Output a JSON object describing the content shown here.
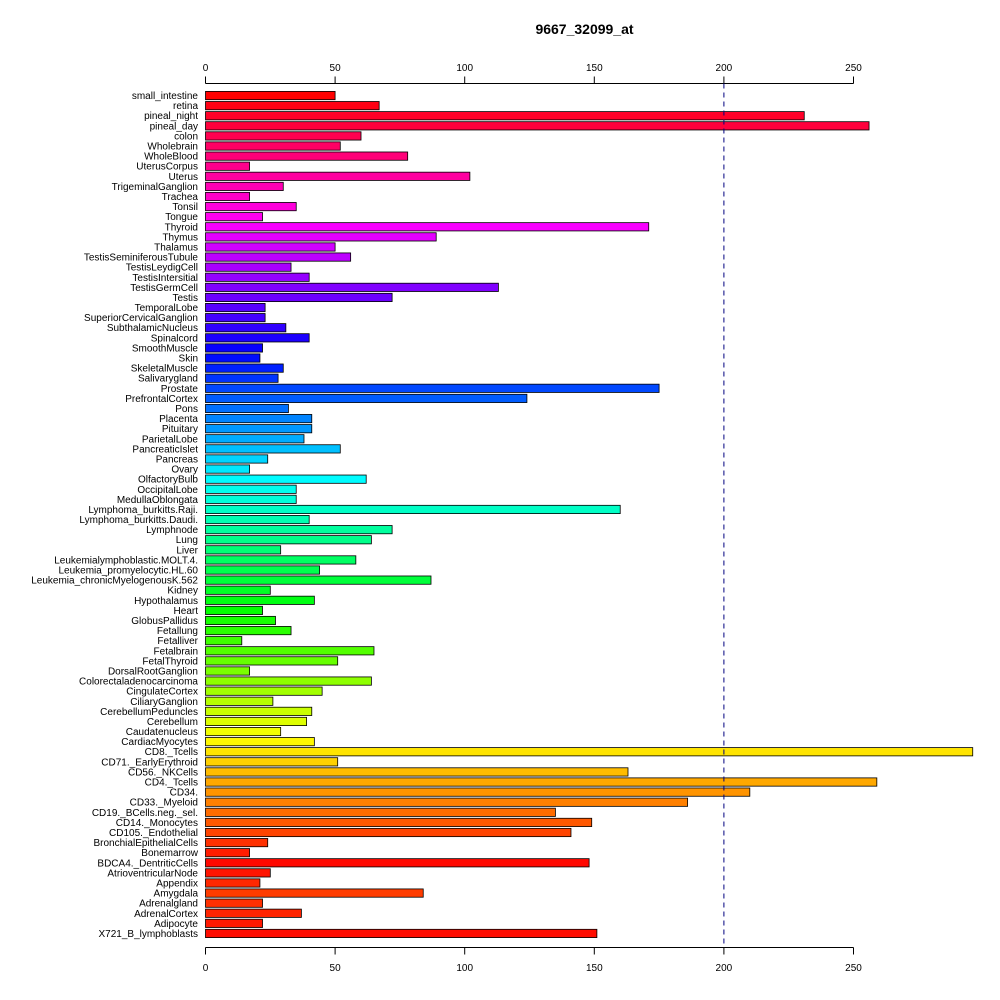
{
  "chart_data": {
    "type": "bar",
    "orientation": "horizontal",
    "title": "9667_32099_at",
    "xlabel": "",
    "ylabel": "",
    "xlim": [
      0,
      295
    ],
    "xticks": [
      0,
      50,
      100,
      150,
      200,
      250
    ],
    "xtick_labels": [
      "0",
      "50",
      "100",
      "150",
      "200",
      "250"
    ],
    "reference_line": 200,
    "grid": false,
    "legend": "none",
    "bars": [
      {
        "label": "small_intestine",
        "value": 50,
        "color": "#FF0000"
      },
      {
        "label": "retina",
        "value": 67,
        "color": "#FF0014"
      },
      {
        "label": "pineal_night",
        "value": 231,
        "color": "#FF0028"
      },
      {
        "label": "pineal_day",
        "value": 256,
        "color": "#FF003C"
      },
      {
        "label": "colon",
        "value": 60,
        "color": "#FF0050"
      },
      {
        "label": "Wholebrain",
        "value": 52,
        "color": "#FF0064"
      },
      {
        "label": "WholeBlood",
        "value": 78,
        "color": "#FF0078"
      },
      {
        "label": "UterusCorpus",
        "value": 17,
        "color": "#FF008C"
      },
      {
        "label": "Uterus",
        "value": 102,
        "color": "#FF00A0"
      },
      {
        "label": "TrigeminalGanglion",
        "value": 30,
        "color": "#FF00B4"
      },
      {
        "label": "Trachea",
        "value": 17,
        "color": "#FF00C8"
      },
      {
        "label": "Tonsil",
        "value": 35,
        "color": "#FF00DC"
      },
      {
        "label": "Tongue",
        "value": 22,
        "color": "#FF00F0"
      },
      {
        "label": "Thyroid",
        "value": 171,
        "color": "#F800FF"
      },
      {
        "label": "Thymus",
        "value": 89,
        "color": "#E400FF"
      },
      {
        "label": "Thalamus",
        "value": 50,
        "color": "#D000FF"
      },
      {
        "label": "TestisSeminiferousTubule",
        "value": 56,
        "color": "#BC00FF"
      },
      {
        "label": "TestisLeydigCell",
        "value": 33,
        "color": "#A800FF"
      },
      {
        "label": "TestisIntersitial",
        "value": 40,
        "color": "#9400FF"
      },
      {
        "label": "TestisGermCell",
        "value": 113,
        "color": "#8000FF"
      },
      {
        "label": "Testis",
        "value": 72,
        "color": "#6C00FF"
      },
      {
        "label": "TemporalLobe",
        "value": 23,
        "color": "#5800FF"
      },
      {
        "label": "SuperiorCervicalGanglion",
        "value": 23,
        "color": "#4400FF"
      },
      {
        "label": "SubthalamicNucleus",
        "value": 31,
        "color": "#3000FF"
      },
      {
        "label": "Spinalcord",
        "value": 40,
        "color": "#1C00FF"
      },
      {
        "label": "SmoothMuscle",
        "value": 22,
        "color": "#0800FF"
      },
      {
        "label": "Skin",
        "value": 21,
        "color": "#000CFF"
      },
      {
        "label": "SkeletalMuscle",
        "value": 30,
        "color": "#0020FF"
      },
      {
        "label": "Salivarygland",
        "value": 28,
        "color": "#0034FF"
      },
      {
        "label": "Prostate",
        "value": 175,
        "color": "#0048FF"
      },
      {
        "label": "PrefrontalCortex",
        "value": 124,
        "color": "#005CFF"
      },
      {
        "label": "Pons",
        "value": 32,
        "color": "#0070FF"
      },
      {
        "label": "Placenta",
        "value": 41,
        "color": "#0084FF"
      },
      {
        "label": "Pituitary",
        "value": 41,
        "color": "#0098FF"
      },
      {
        "label": "ParietalLobe",
        "value": 38,
        "color": "#00ACFF"
      },
      {
        "label": "PancreaticIslet",
        "value": 52,
        "color": "#00C0FF"
      },
      {
        "label": "Pancreas",
        "value": 24,
        "color": "#00D4FF"
      },
      {
        "label": "Ovary",
        "value": 17,
        "color": "#00E8FF"
      },
      {
        "label": "OlfactoryBulb",
        "value": 62,
        "color": "#00FCFF"
      },
      {
        "label": "OccipitalLobe",
        "value": 35,
        "color": "#00FFEE"
      },
      {
        "label": "MedullaOblongata",
        "value": 35,
        "color": "#00FFDA"
      },
      {
        "label": "Lymphoma_burkitts.Raji.",
        "value": 160,
        "color": "#00FFC6"
      },
      {
        "label": "Lymphoma_burkitts.Daudi.",
        "value": 40,
        "color": "#00FFB2"
      },
      {
        "label": "Lymphnode",
        "value": 72,
        "color": "#00FF9E"
      },
      {
        "label": "Lung",
        "value": 64,
        "color": "#00FF8A"
      },
      {
        "label": "Liver",
        "value": 29,
        "color": "#00FF76"
      },
      {
        "label": "Leukemialymphoblastic.MOLT.4.",
        "value": 58,
        "color": "#00FF62"
      },
      {
        "label": "Leukemia_promyelocytic.HL.60",
        "value": 44,
        "color": "#00FF4E"
      },
      {
        "label": "Leukemia_chronicMyelogenousK.562",
        "value": 87,
        "color": "#00FF3A"
      },
      {
        "label": "Kidney",
        "value": 25,
        "color": "#00FF26"
      },
      {
        "label": "Hypothalamus",
        "value": 42,
        "color": "#00FF12"
      },
      {
        "label": "Heart",
        "value": 22,
        "color": "#02FF00"
      },
      {
        "label": "GlobusPallidus",
        "value": 27,
        "color": "#16FF00"
      },
      {
        "label": "Fetallung",
        "value": 33,
        "color": "#2AFF00"
      },
      {
        "label": "Fetalliver",
        "value": 14,
        "color": "#3EFF00"
      },
      {
        "label": "Fetalbrain",
        "value": 65,
        "color": "#52FF00"
      },
      {
        "label": "FetalThyroid",
        "value": 51,
        "color": "#66FF00"
      },
      {
        "label": "DorsalRootGanglion",
        "value": 17,
        "color": "#7AFF00"
      },
      {
        "label": "Colorectaladenocarcinoma",
        "value": 64,
        "color": "#8EFF00"
      },
      {
        "label": "CingulateCortex",
        "value": 45,
        "color": "#A2FF00"
      },
      {
        "label": "CiliaryGanglion",
        "value": 26,
        "color": "#B6FF00"
      },
      {
        "label": "CerebellumPeduncles",
        "value": 41,
        "color": "#CAFF00"
      },
      {
        "label": "Cerebellum",
        "value": 39,
        "color": "#DEFF00"
      },
      {
        "label": "Caudatenucleus",
        "value": 29,
        "color": "#F2FF00"
      },
      {
        "label": "CardiacMyocytes",
        "value": 42,
        "color": "#FFF800"
      },
      {
        "label": "CD8._Tcells",
        "value": 296,
        "color": "#FFE400"
      },
      {
        "label": "CD71._EarlyErythroid",
        "value": 51,
        "color": "#FFD000"
      },
      {
        "label": "CD56._NKCells",
        "value": 163,
        "color": "#FFBC00"
      },
      {
        "label": "CD4._Tcells",
        "value": 259,
        "color": "#FFA800"
      },
      {
        "label": "CD34.",
        "value": 210,
        "color": "#FF9400"
      },
      {
        "label": "CD33._Myeloid",
        "value": 186,
        "color": "#FF8000"
      },
      {
        "label": "CD19._BCells.neg._sel.",
        "value": 135,
        "color": "#FF6C00"
      },
      {
        "label": "CD14._Monocytes",
        "value": 149,
        "color": "#FF5800"
      },
      {
        "label": "CD105._Endothelial",
        "value": 141,
        "color": "#FF4400"
      },
      {
        "label": "BronchialEpithelialCells",
        "value": 24,
        "color": "#FF3000"
      },
      {
        "label": "Bonemarrow",
        "value": 17,
        "color": "#FF1C00"
      },
      {
        "label": "BDCA4._DentriticCells",
        "value": 148,
        "color": "#FF0800"
      },
      {
        "label": "AtrioventricularNode",
        "value": 25,
        "color": "#FF1400"
      },
      {
        "label": "Appendix",
        "value": 21,
        "color": "#FF2800"
      },
      {
        "label": "Amygdala",
        "value": 84,
        "color": "#FF3C00"
      },
      {
        "label": "Adrenalgland",
        "value": 22,
        "color": "#FF3000"
      },
      {
        "label": "AdrenalCortex",
        "value": 37,
        "color": "#FF2400"
      },
      {
        "label": "Adipocyte",
        "value": 22,
        "color": "#FF1800"
      },
      {
        "label": "X721_B_lymphoblasts",
        "value": 151,
        "color": "#FF0C00"
      }
    ]
  }
}
